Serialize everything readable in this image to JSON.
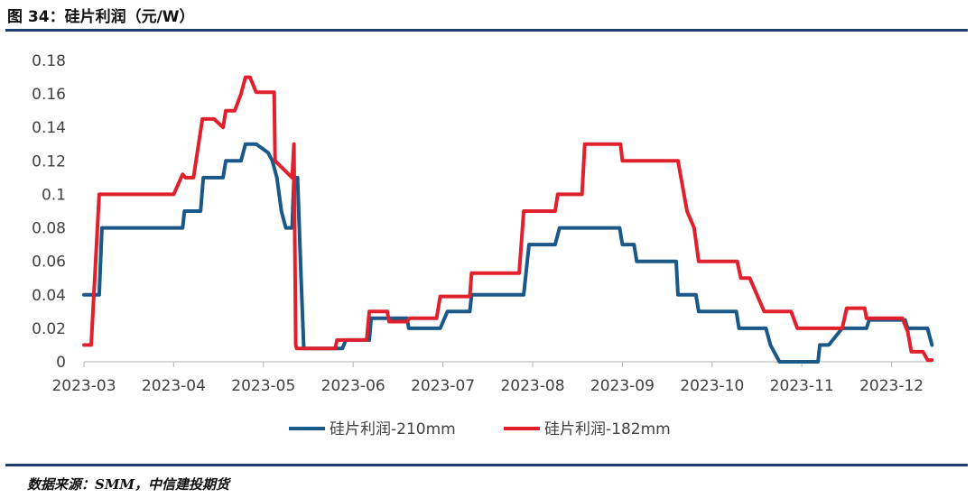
{
  "figure": {
    "title": "图 34：硅片利润（元/W）",
    "source": "数据来源：SMM，中信建投期货"
  },
  "chart_data": {
    "type": "line",
    "title": "",
    "xlabel": "",
    "ylabel": "",
    "x_ticks": [
      "2023-03",
      "2023-04",
      "2023-05",
      "2023-06",
      "2023-07",
      "2023-08",
      "2023-09",
      "2023-10",
      "2023-11",
      "2023-12"
    ],
    "y_ticks": [
      "0",
      "0.02",
      "0.04",
      "0.06",
      "0.08",
      "0.1",
      "0.12",
      "0.14",
      "0.16",
      "0.18"
    ],
    "ylim": [
      0,
      0.18
    ],
    "xlim": [
      0,
      9.45
    ],
    "grid": false,
    "legend": "bottom",
    "colors": {
      "s210": "#1a5887",
      "s182": "#e1202d",
      "axis": "#bfbfbf"
    },
    "series": [
      {
        "name": "硅片利润-210mm",
        "color": "#1a5887",
        "points": [
          [
            0,
            0.04
          ],
          [
            0.17,
            0.04
          ],
          [
            0.2,
            0.08
          ],
          [
            1.1,
            0.08
          ],
          [
            1.12,
            0.09
          ],
          [
            1.3,
            0.09
          ],
          [
            1.33,
            0.11
          ],
          [
            1.55,
            0.11
          ],
          [
            1.58,
            0.12
          ],
          [
            1.75,
            0.12
          ],
          [
            1.8,
            0.13
          ],
          [
            1.92,
            0.13
          ],
          [
            2.05,
            0.125
          ],
          [
            2.1,
            0.12
          ],
          [
            2.15,
            0.11
          ],
          [
            2.2,
            0.09
          ],
          [
            2.25,
            0.08
          ],
          [
            2.32,
            0.08
          ],
          [
            2.34,
            0.11
          ],
          [
            2.38,
            0.11
          ],
          [
            2.42,
            0.05
          ],
          [
            2.45,
            0.008
          ],
          [
            2.72,
            0.008
          ],
          [
            2.88,
            0.008
          ],
          [
            2.92,
            0.013
          ],
          [
            3.18,
            0.013
          ],
          [
            3.2,
            0.026
          ],
          [
            3.6,
            0.026
          ],
          [
            3.62,
            0.02
          ],
          [
            3.97,
            0.02
          ],
          [
            4.05,
            0.03
          ],
          [
            4.3,
            0.03
          ],
          [
            4.32,
            0.04
          ],
          [
            4.9,
            0.04
          ],
          [
            4.96,
            0.07
          ],
          [
            5.25,
            0.07
          ],
          [
            5.3,
            0.08
          ],
          [
            5.97,
            0.08
          ],
          [
            6.0,
            0.07
          ],
          [
            6.13,
            0.07
          ],
          [
            6.16,
            0.06
          ],
          [
            6.6,
            0.06
          ],
          [
            6.62,
            0.04
          ],
          [
            6.82,
            0.04
          ],
          [
            6.85,
            0.03
          ],
          [
            7.27,
            0.03
          ],
          [
            7.3,
            0.02
          ],
          [
            7.6,
            0.02
          ],
          [
            7.65,
            0.01
          ],
          [
            7.75,
            0.0
          ],
          [
            8.18,
            0.0
          ],
          [
            8.2,
            0.01
          ],
          [
            8.3,
            0.01
          ],
          [
            8.45,
            0.02
          ],
          [
            8.72,
            0.02
          ],
          [
            8.75,
            0.025
          ],
          [
            9.15,
            0.025
          ],
          [
            9.18,
            0.02
          ],
          [
            9.4,
            0.02
          ],
          [
            9.45,
            0.01
          ]
        ]
      },
      {
        "name": "硅片利润-182mm",
        "color": "#e1202d",
        "points": [
          [
            0,
            0.01
          ],
          [
            0.08,
            0.01
          ],
          [
            0.17,
            0.1
          ],
          [
            1.0,
            0.1
          ],
          [
            1.1,
            0.112
          ],
          [
            1.13,
            0.11
          ],
          [
            1.22,
            0.11
          ],
          [
            1.32,
            0.145
          ],
          [
            1.45,
            0.145
          ],
          [
            1.55,
            0.14
          ],
          [
            1.58,
            0.15
          ],
          [
            1.68,
            0.15
          ],
          [
            1.75,
            0.16
          ],
          [
            1.8,
            0.17
          ],
          [
            1.85,
            0.17
          ],
          [
            1.92,
            0.161
          ],
          [
            2.12,
            0.161
          ],
          [
            2.13,
            0.12
          ],
          [
            2.32,
            0.11
          ],
          [
            2.34,
            0.13
          ],
          [
            2.36,
            0.01
          ],
          [
            2.37,
            0.008
          ],
          [
            2.75,
            0.008
          ],
          [
            2.8,
            0.008
          ],
          [
            2.82,
            0.013
          ],
          [
            3.15,
            0.013
          ],
          [
            3.18,
            0.03
          ],
          [
            3.38,
            0.03
          ],
          [
            3.4,
            0.024
          ],
          [
            3.6,
            0.024
          ],
          [
            3.63,
            0.026
          ],
          [
            3.93,
            0.026
          ],
          [
            3.97,
            0.039
          ],
          [
            4.3,
            0.039
          ],
          [
            4.32,
            0.053
          ],
          [
            4.85,
            0.053
          ],
          [
            4.9,
            0.09
          ],
          [
            5.25,
            0.09
          ],
          [
            5.28,
            0.1
          ],
          [
            5.55,
            0.1
          ],
          [
            5.58,
            0.13
          ],
          [
            5.98,
            0.13
          ],
          [
            6.0,
            0.12
          ],
          [
            6.62,
            0.12
          ],
          [
            6.72,
            0.09
          ],
          [
            6.8,
            0.08
          ],
          [
            6.85,
            0.06
          ],
          [
            7.28,
            0.06
          ],
          [
            7.32,
            0.05
          ],
          [
            7.42,
            0.05
          ],
          [
            7.5,
            0.04
          ],
          [
            7.58,
            0.03
          ],
          [
            7.88,
            0.03
          ],
          [
            7.95,
            0.02
          ],
          [
            8.45,
            0.02
          ],
          [
            8.5,
            0.032
          ],
          [
            8.7,
            0.032
          ],
          [
            8.72,
            0.026
          ],
          [
            9.12,
            0.026
          ],
          [
            9.18,
            0.018
          ],
          [
            9.22,
            0.006
          ],
          [
            9.35,
            0.006
          ],
          [
            9.4,
            0.001
          ],
          [
            9.45,
            0.001
          ]
        ]
      }
    ]
  }
}
